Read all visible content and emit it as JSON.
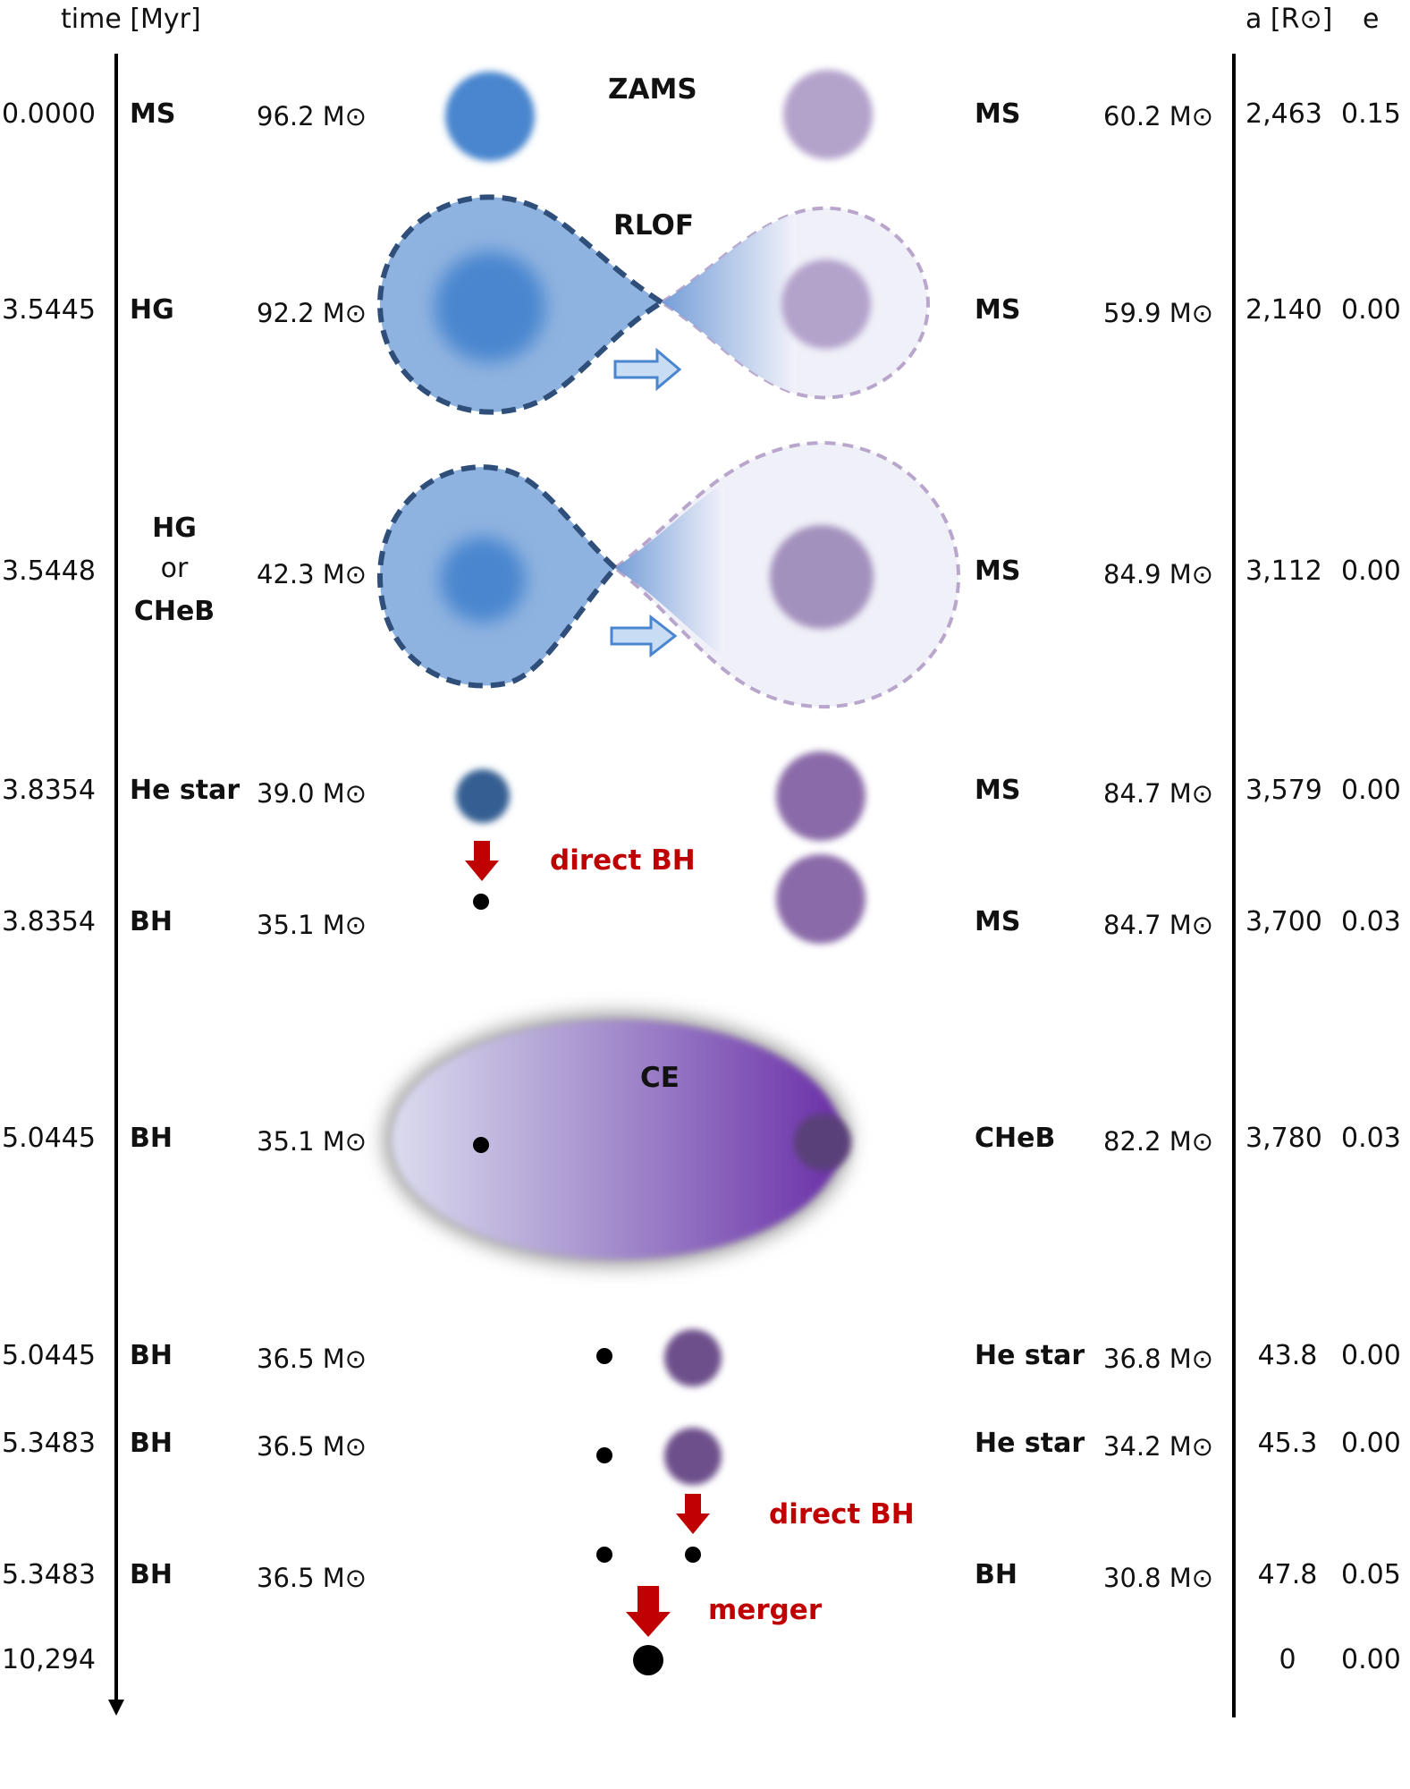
{
  "header": {
    "time_label": "time [Myr]",
    "a_label": "a [R⊙]",
    "e_label": "e"
  },
  "rows": [
    {
      "time": "0.0000",
      "left_stage": "MS",
      "left_mass": "96.2 M⊙",
      "right_stage": "MS",
      "right_mass": "60.2 M⊙",
      "a": "2,463",
      "e": "0.15"
    },
    {
      "time": "3.5445",
      "left_stage": "HG",
      "left_mass": "92.2 M⊙",
      "right_stage": "MS",
      "right_mass": "59.9 M⊙",
      "a": "2,140",
      "e": "0.00"
    },
    {
      "time": "3.5448",
      "left_stage": "HG",
      "left_stage_2": "or",
      "left_stage_3": "CHeB",
      "left_mass": "42.3 M⊙",
      "right_stage": "MS",
      "right_mass": "84.9 M⊙",
      "a": "3,112",
      "e": "0.00"
    },
    {
      "time": "3.8354",
      "left_stage": "He star",
      "left_mass": "39.0 M⊙",
      "right_stage": "MS",
      "right_mass": "84.7 M⊙",
      "a": "3,579",
      "e": "0.00"
    },
    {
      "time": "3.8354",
      "left_stage": "BH",
      "left_mass": "35.1 M⊙",
      "right_stage": "MS",
      "right_mass": "84.7 M⊙",
      "a": "3,700",
      "e": "0.03"
    },
    {
      "time": "5.0445",
      "left_stage": "BH",
      "left_mass": "35.1 M⊙",
      "right_stage": "CHeB",
      "right_mass": "82.2 M⊙",
      "a": "3,780",
      "e": "0.03"
    },
    {
      "time": "5.0445",
      "left_stage": "BH",
      "left_mass": "36.5 M⊙",
      "right_stage": "He star",
      "right_mass": "36.8 M⊙",
      "a": "43.8",
      "e": "0.00"
    },
    {
      "time": "5.3483",
      "left_stage": "BH",
      "left_mass": "36.5 M⊙",
      "right_stage": "He star",
      "right_mass": "34.2 M⊙",
      "a": "45.3",
      "e": "0.00"
    },
    {
      "time": "5.3483",
      "left_stage": "BH",
      "left_mass": "36.5 M⊙",
      "right_stage": "BH",
      "right_mass": "30.8 M⊙",
      "a": "47.8",
      "e": "0.05"
    },
    {
      "time": "10,294",
      "left_stage": "",
      "left_mass": "",
      "right_stage": "",
      "right_mass": "",
      "a": "0",
      "e": "0.00"
    }
  ],
  "events": {
    "zams": "ZAMS",
    "rlof": "RLOF",
    "ce": "CE",
    "direct_bh_1": "direct BH",
    "direct_bh_2": "direct BH",
    "merger": "merger"
  },
  "colors": {
    "primary_star": "#4a86cf",
    "primary_lobe": "#8fb3e0",
    "primary_dash": "#2f4f7a",
    "secondary_ms": "#b3a3cb",
    "secondary_ms2": "#a391bd",
    "secondary_ms3": "#8a6aa8",
    "he_star_primary": "#355f92",
    "he_star_secondary": "#6d4f8b",
    "event_red": "#c00000",
    "ce_left": "#d8d8ee",
    "ce_right": "#6c33a8"
  }
}
